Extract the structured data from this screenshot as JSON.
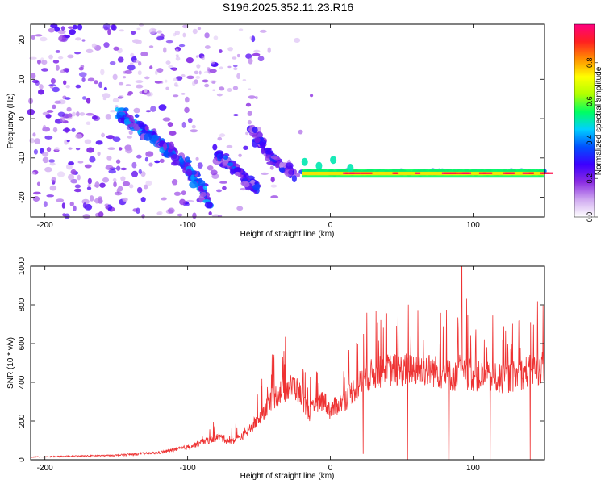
{
  "title": "S196.2025.352.11.23.R16",
  "chart_data": [
    {
      "type": "heatmap",
      "name": "spectrogram",
      "title": "S196.2025.352.11.23.R16",
      "xlabel": "Height of straight line (km)",
      "ylabel": "Frequency (Hz)",
      "xlim": [
        -210,
        150
      ],
      "ylim": [
        -25,
        24
      ],
      "xticks": [
        -200,
        -100,
        0,
        100
      ],
      "yticks": [
        20,
        10,
        0,
        -10,
        -20
      ],
      "colorbar": {
        "label": "Normalized spectral amplitude",
        "range": [
          0,
          1
        ],
        "ticks": [
          "0.0",
          "0.2",
          "0.4",
          "0.6",
          "0.8"
        ],
        "tick_values": [
          0.0,
          0.2,
          0.4,
          0.6,
          0.8
        ],
        "colormap": "rainbow",
        "colors": [
          "#ffffff",
          "#cfa8f0",
          "#8a2be2",
          "#3c00ff",
          "#0050ff",
          "#00d0ff",
          "#00ff60",
          "#b0ff00",
          "#ffff00",
          "#ff9000",
          "#ff2020",
          "#ff0080"
        ]
      },
      "features": [
        {
          "name": "dispersed-band",
          "points": [
            [
              -150,
              2
            ],
            [
              -120,
              -6
            ],
            [
              -100,
              -12
            ],
            [
              -90,
              -18
            ],
            [
              -85,
              -22
            ]
          ],
          "amplitude": 0.35
        },
        {
          "name": "branch-a",
          "points": [
            [
              -80,
              -9
            ],
            [
              -70,
              -12
            ],
            [
              -60,
              -15
            ],
            [
              -50,
              -18
            ]
          ],
          "amplitude": 0.3
        },
        {
          "name": "branch-b",
          "points": [
            [
              -55,
              -3
            ],
            [
              -45,
              -8
            ],
            [
              -35,
              -12
            ],
            [
              -25,
              -14
            ]
          ],
          "amplitude": 0.25
        },
        {
          "name": "tone-line",
          "points": [
            [
              -20,
              -13.5
            ],
            [
              40,
              -13.5
            ],
            [
              90,
              -13.5
            ],
            [
              150,
              -14
            ]
          ],
          "frequency_hz": -14,
          "amplitude": 0.9
        }
      ]
    },
    {
      "type": "line",
      "name": "snr",
      "xlabel": "Height of straight line (km)",
      "ylabel": "SNR (10 * v/v)",
      "xlim": [
        -210,
        150
      ],
      "ylim": [
        0,
        1000
      ],
      "xticks": [
        -200,
        -100,
        0,
        100
      ],
      "yticks": [
        0,
        200,
        400,
        600,
        800,
        1000
      ],
      "color": "#ee3333",
      "series": [
        {
          "name": "SNR",
          "x": [
            -210,
            -180,
            -150,
            -120,
            -100,
            -85,
            -78,
            -70,
            -60,
            -50,
            -42,
            -35,
            -30,
            -25,
            -20,
            -15,
            -10,
            -5,
            0,
            5,
            10,
            15,
            20,
            25,
            30,
            40,
            50,
            60,
            70,
            80,
            90,
            93,
            96,
            100,
            110,
            120,
            130,
            140,
            150
          ],
          "values": [
            15,
            20,
            25,
            40,
            70,
            110,
            130,
            100,
            140,
            230,
            330,
            380,
            400,
            410,
            350,
            260,
            300,
            340,
            270,
            310,
            330,
            380,
            420,
            460,
            480,
            500,
            500,
            510,
            500,
            480,
            460,
            1000,
            480,
            470,
            460,
            450,
            470,
            500,
            520
          ],
          "spikes": [
            {
              "x": 23,
              "value": 30
            },
            {
              "x": 54,
              "value": 0
            },
            {
              "x": 83,
              "value": 0
            },
            {
              "x": 92,
              "value": 1000
            },
            {
              "x": 112,
              "value": 0
            },
            {
              "x": 140,
              "value": 0
            }
          ]
        }
      ]
    }
  ]
}
